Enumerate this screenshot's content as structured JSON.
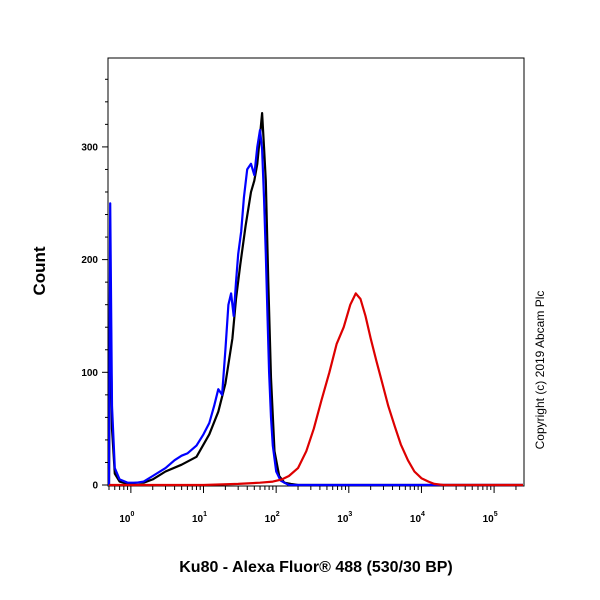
{
  "chart_data": {
    "type": "line",
    "xlabel": "Ku80 - Alexa Fluor® 488 (530/30 BP)",
    "ylabel": "Count",
    "annotation": "Copyright (c) 2019 Abcam Plc",
    "x_scale": "log",
    "xlim": [
      0.5,
      250000
    ],
    "ylim": [
      0,
      378
    ],
    "x_ticks": [
      {
        "base": "10",
        "exp": "0",
        "value": 1
      },
      {
        "base": "10",
        "exp": "1",
        "value": 10
      },
      {
        "base": "10",
        "exp": "2",
        "value": 100
      },
      {
        "base": "10",
        "exp": "3",
        "value": 1000
      },
      {
        "base": "10",
        "exp": "4",
        "value": 10000
      },
      {
        "base": "10",
        "exp": "5",
        "value": 100000
      }
    ],
    "y_ticks": [
      "0",
      "100",
      "200",
      "300"
    ],
    "y_tick_values": [
      0,
      100,
      200,
      300
    ],
    "grid": false,
    "series": [
      {
        "color": "#000000",
        "x": [
          0.5,
          0.52,
          0.55,
          0.6,
          0.7,
          0.9,
          1.2,
          1.5,
          2,
          3,
          5,
          8,
          12,
          16,
          20,
          25,
          28,
          32,
          38,
          45,
          50,
          55,
          60,
          64,
          68,
          72,
          78,
          85,
          95,
          110,
          130,
          160,
          200,
          300,
          1000,
          100000,
          250000
        ],
        "y": [
          0,
          200,
          50,
          10,
          3,
          1,
          2,
          2,
          5,
          12,
          18,
          25,
          45,
          65,
          90,
          130,
          165,
          195,
          230,
          260,
          270,
          285,
          310,
          330,
          300,
          270,
          180,
          95,
          30,
          8,
          2,
          1,
          0,
          0,
          0,
          0,
          0
        ]
      },
      {
        "color": "#0000ff",
        "x": [
          0.5,
          0.52,
          0.55,
          0.6,
          0.7,
          0.9,
          1.2,
          1.5,
          2,
          3,
          4,
          5,
          6,
          8,
          10,
          12,
          14,
          16,
          18,
          20,
          22,
          24,
          26,
          28,
          30,
          33,
          36,
          40,
          45,
          50,
          55,
          60,
          64,
          68,
          72,
          76,
          80,
          85,
          90,
          100,
          115,
          130,
          150,
          200,
          1000,
          250000
        ],
        "y": [
          0,
          250,
          70,
          15,
          5,
          2,
          2,
          3,
          8,
          15,
          22,
          26,
          28,
          35,
          45,
          55,
          70,
          85,
          80,
          120,
          160,
          170,
          150,
          180,
          205,
          225,
          255,
          280,
          285,
          275,
          300,
          315,
          298,
          255,
          205,
          150,
          100,
          60,
          35,
          12,
          4,
          2,
          0,
          0,
          0,
          0
        ]
      },
      {
        "color": "#dd0000",
        "x": [
          0.5,
          10,
          30,
          60,
          90,
          120,
          150,
          200,
          260,
          330,
          420,
          540,
          680,
          850,
          1050,
          1250,
          1450,
          1700,
          2000,
          2400,
          2900,
          3500,
          4300,
          5200,
          6500,
          8000,
          10000,
          12500,
          15000,
          20000,
          250000
        ],
        "y": [
          0,
          0,
          1,
          2,
          3,
          5,
          8,
          15,
          30,
          50,
          75,
          100,
          125,
          140,
          160,
          170,
          165,
          150,
          130,
          110,
          90,
          70,
          52,
          36,
          22,
          12,
          6,
          3,
          1,
          0,
          0
        ]
      }
    ]
  }
}
